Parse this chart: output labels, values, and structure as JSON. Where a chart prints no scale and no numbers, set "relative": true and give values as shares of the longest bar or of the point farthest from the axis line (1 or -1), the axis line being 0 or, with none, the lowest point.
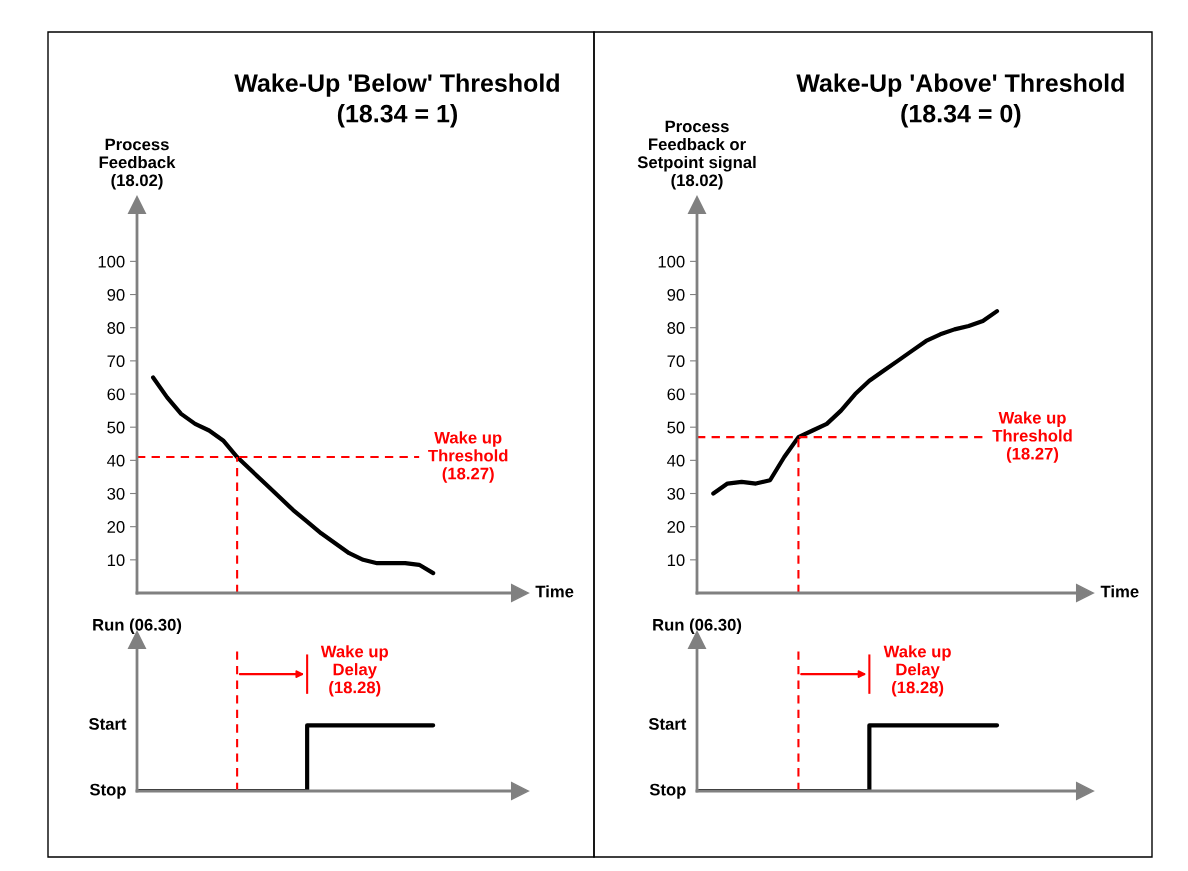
{
  "chart_data": [
    {
      "type": "line",
      "title": "Wake-Up 'Below' Threshold\n(18.34 = 1)",
      "ylabel": "Process\nFeedback\n(18.02)",
      "xlabel": "Time",
      "categories": [
        null,
        null,
        null,
        null,
        null,
        null,
        null,
        null,
        null,
        null,
        null,
        null,
        null,
        null,
        null,
        null,
        null,
        null,
        null,
        null,
        null,
        null
      ],
      "series": [
        {
          "color": "#000000",
          "values": [
            null,
            65,
            59,
            54,
            51,
            49,
            46,
            41,
            37,
            33,
            29,
            25,
            21.5,
            18,
            15,
            12,
            10,
            9,
            9,
            9,
            8.5,
            6
          ]
        }
      ],
      "ylim": [
        0,
        117
      ],
      "yticks": [
        10,
        20,
        30,
        40,
        50,
        60,
        70,
        80,
        90,
        100
      ],
      "grid": false,
      "legend": false,
      "marker": "none",
      "line_style": "solid",
      "ref_lines": [
        {
          "axis": "y",
          "value": 41,
          "label": "Wake up\nThreshold\n(18.27)",
          "color": "#ff0000",
          "line_style": "dashed"
        }
      ]
    },
    {
      "type": "line",
      "title": "Wake-Up 'Above' Threshold\n(18.34 = 0)",
      "ylabel": "Process\nFeedback or\nSetpoint signal\n(18.02)",
      "xlabel": "Time",
      "categories": [
        null,
        null,
        null,
        null,
        null,
        null,
        null,
        null,
        null,
        null,
        null,
        null,
        null,
        null,
        null,
        null,
        null,
        null,
        null,
        null,
        null,
        null
      ],
      "series": [
        {
          "color": "#000000",
          "values": [
            null,
            30,
            33,
            33.5,
            33,
            34,
            41,
            47,
            49,
            51,
            55,
            60,
            64,
            67,
            70,
            73,
            76,
            78,
            79.5,
            80.5,
            82,
            85
          ]
        }
      ],
      "ylim": [
        0,
        117
      ],
      "yticks": [
        10,
        20,
        30,
        40,
        50,
        60,
        70,
        80,
        90,
        100
      ],
      "grid": false,
      "legend": false,
      "marker": "none",
      "line_style": "solid",
      "ref_lines": [
        {
          "axis": "y",
          "value": 47,
          "label": "Wake up\nThreshold\n(18.27)",
          "color": "#ff0000",
          "line_style": "dashed"
        }
      ]
    },
    {
      "type": "step",
      "ylabel": "Run (06.30)",
      "relative": true,
      "categories": [
        null,
        null,
        null,
        null,
        null,
        null,
        null,
        null,
        null,
        null,
        null,
        null,
        null,
        null,
        null,
        null,
        null,
        null,
        null,
        null,
        null,
        null
      ],
      "series": [
        {
          "color": "#000000",
          "values": [
            0,
            0,
            0,
            0,
            0,
            0,
            0,
            0,
            0,
            0,
            0,
            0,
            1,
            1,
            1,
            1,
            1,
            1,
            1,
            1,
            1,
            1
          ]
        }
      ],
      "grid": false,
      "legend": false,
      "annotations": [
        "Stop",
        "Start",
        "Wake up\nDelay\n(18.28)"
      ]
    },
    {
      "type": "step",
      "ylabel": "Run (06.30)",
      "relative": true,
      "categories": [
        null,
        null,
        null,
        null,
        null,
        null,
        null,
        null,
        null,
        null,
        null,
        null,
        null,
        null,
        null,
        null,
        null,
        null,
        null,
        null,
        null,
        null
      ],
      "series": [
        {
          "color": "#000000",
          "values": [
            0,
            0,
            0,
            0,
            0,
            0,
            0,
            0,
            0,
            0,
            0,
            0,
            1,
            1,
            1,
            1,
            1,
            1,
            1,
            1,
            1,
            1
          ]
        }
      ],
      "grid": false,
      "legend": false,
      "annotations": [
        "Stop",
        "Start",
        "Wake up\nDelay\n(18.28)"
      ]
    }
  ]
}
